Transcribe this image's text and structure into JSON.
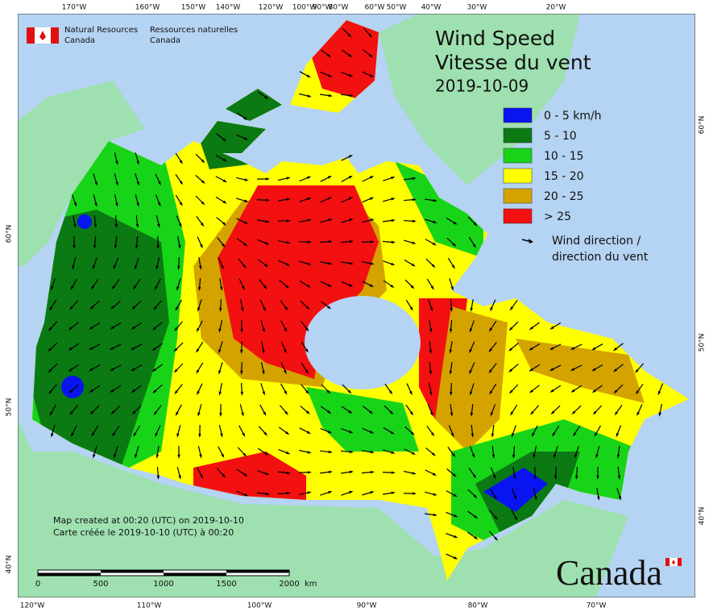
{
  "header": {
    "agency_en": [
      "Natural Resources",
      "Canada"
    ],
    "agency_fr": [
      "Ressources naturelles",
      "Canada"
    ]
  },
  "title": [
    "Wind Speed",
    "Vitesse du vent"
  ],
  "date": "2019-10-09",
  "legend": [
    {
      "label": "0 - 5 km/h",
      "color": "#0a14f0"
    },
    {
      "label": "5 - 10",
      "color": "#0b7a12"
    },
    {
      "label": "10 - 15",
      "color": "#18d418"
    },
    {
      "label": "15 - 20",
      "color": "#ffff00"
    },
    {
      "label": "20 - 25",
      "color": "#d4a300"
    },
    {
      "label": "> 25",
      "color": "#f21010"
    }
  ],
  "wind_direction": [
    "Wind direction /",
    "direction du vent"
  ],
  "footer": [
    "Map created at 00:20 (UTC) on 2019-10-10",
    "Carte créée le 2019-10-10 (UTC) à 00:20"
  ],
  "scale": [
    "0",
    "500",
    "1000",
    "1500",
    "2000",
    "km"
  ],
  "wordmark": "Canada",
  "lon_top": [
    "170°W",
    "160°W",
    "150°W",
    "140°W",
    "120°W",
    "100°W",
    "90°W",
    "80°W",
    "60°W",
    "50°W",
    "40°W",
    "30°W",
    "20°W"
  ],
  "lon_bottom": [
    "120°W",
    "110°W",
    "100°W",
    "90°W",
    "80°W",
    "70°W"
  ],
  "lat_left": [
    "60°N",
    "50°N",
    "40°N"
  ],
  "lat_right": [
    "60°N",
    "50°N",
    "40°N"
  ]
}
